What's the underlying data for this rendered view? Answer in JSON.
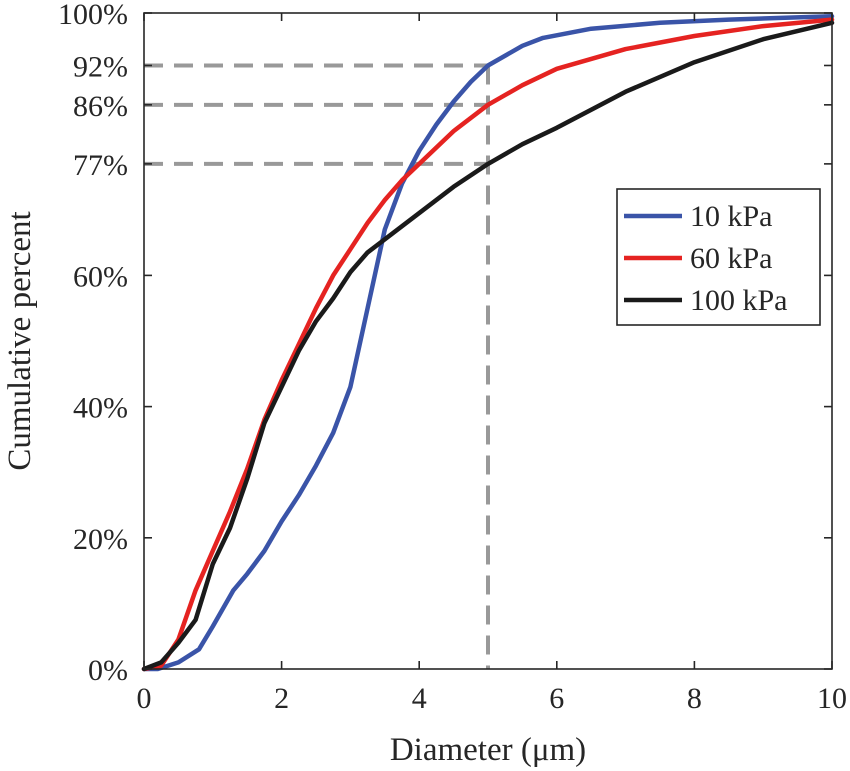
{
  "chart_data": {
    "type": "line",
    "xlabel": "Diameter (μm)",
    "ylabel": "Cumulative percent",
    "xlim": [
      0,
      10
    ],
    "ylim": [
      0,
      100
    ],
    "x_ticks": [
      {
        "value": 0,
        "label": "0"
      },
      {
        "value": 2,
        "label": "2"
      },
      {
        "value": 4,
        "label": "4"
      },
      {
        "value": 6,
        "label": "6"
      },
      {
        "value": 8,
        "label": "8"
      },
      {
        "value": 10,
        "label": "10"
      }
    ],
    "y_ticks": [
      {
        "value": 0,
        "label": "0%"
      },
      {
        "value": 20,
        "label": "20%"
      },
      {
        "value": 40,
        "label": "40%"
      },
      {
        "value": 60,
        "label": "60%"
      },
      {
        "value": 77,
        "label": "77%"
      },
      {
        "value": 86,
        "label": "86%"
      },
      {
        "value": 92,
        "label": "92%"
      },
      {
        "value": 100,
        "label": "100%"
      }
    ],
    "legend_position": "right",
    "grid": false,
    "series": [
      {
        "name": "10 kPa",
        "color": "#3a54a8",
        "x": [
          0,
          0.2,
          0.5,
          0.8,
          1.0,
          1.3,
          1.5,
          1.75,
          2.0,
          2.25,
          2.5,
          2.75,
          3.0,
          3.25,
          3.5,
          3.75,
          4.0,
          4.25,
          4.5,
          4.75,
          5.0,
          5.5,
          5.8,
          6.5,
          7.5,
          8.5,
          10
        ],
        "y": [
          0,
          0,
          1,
          3,
          6.5,
          12,
          14.5,
          18,
          22.5,
          26.5,
          31,
          36,
          43,
          55,
          67,
          74,
          79,
          83,
          86.5,
          89.5,
          92,
          95,
          96.2,
          97.6,
          98.5,
          99,
          99.5
        ]
      },
      {
        "name": "60 kPa",
        "color": "#e52321",
        "x": [
          0,
          0.25,
          0.5,
          0.75,
          1.0,
          1.25,
          1.5,
          1.75,
          2.0,
          2.25,
          2.5,
          2.75,
          3.0,
          3.25,
          3.5,
          3.75,
          4.0,
          4.5,
          5.0,
          5.5,
          6.0,
          7.0,
          8.0,
          9.0,
          10
        ],
        "y": [
          0,
          0.5,
          4.5,
          12,
          18,
          24,
          30.5,
          38,
          44,
          49.5,
          55,
          60,
          64,
          68,
          71.5,
          74.5,
          77,
          82,
          86,
          89,
          91.5,
          94.5,
          96.5,
          98,
          99
        ]
      },
      {
        "name": "100 kPa",
        "color": "#1a1a1a",
        "x": [
          0,
          0.25,
          0.5,
          0.75,
          1.0,
          1.25,
          1.5,
          1.75,
          2.0,
          2.25,
          2.5,
          2.75,
          3.0,
          3.25,
          3.5,
          3.75,
          4.0,
          4.5,
          5.0,
          5.5,
          6.0,
          7.0,
          8.0,
          9.0,
          10
        ],
        "y": [
          0,
          1,
          4,
          7.5,
          16,
          21.5,
          29,
          37.5,
          43,
          48.5,
          53,
          56.5,
          60.5,
          63.5,
          65.5,
          67.5,
          69.5,
          73.5,
          77,
          80,
          82.5,
          88,
          92.5,
          96,
          98.5
        ]
      }
    ],
    "reference_lines": {
      "x_value": 5,
      "y_values": [
        92,
        86,
        77
      ],
      "color": "#999999"
    }
  }
}
